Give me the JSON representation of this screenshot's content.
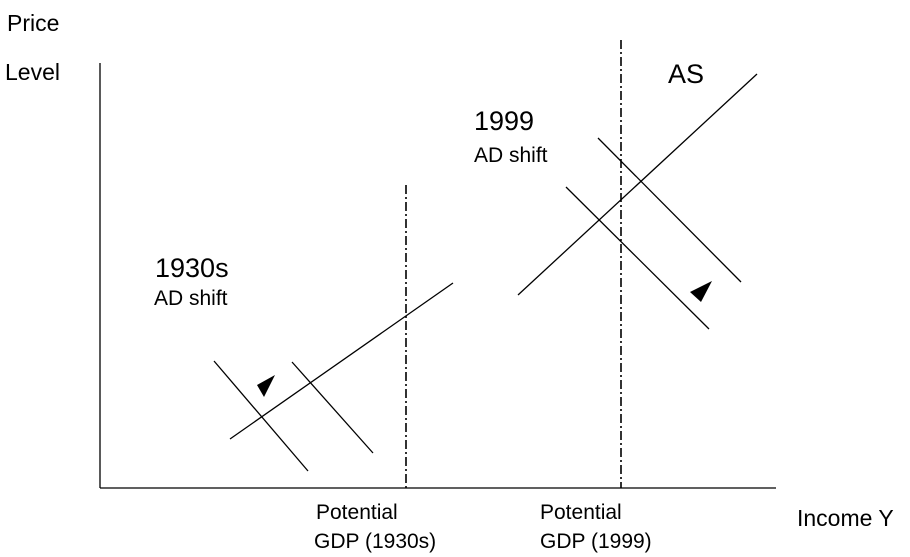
{
  "axes": {
    "y_label_line1": "Price",
    "y_label_line2": "Level",
    "x_label": "Income Y"
  },
  "curve_labels": {
    "as": "AS"
  },
  "era_1930s": {
    "year": "1930s",
    "shift_label": "AD shift",
    "potential_line1": "Potential",
    "potential_line2": "GDP (1930s)"
  },
  "era_1999": {
    "year": "1999",
    "shift_label": "AD shift",
    "potential_line1": "Potential",
    "potential_line2": "GDP (1999)"
  }
}
